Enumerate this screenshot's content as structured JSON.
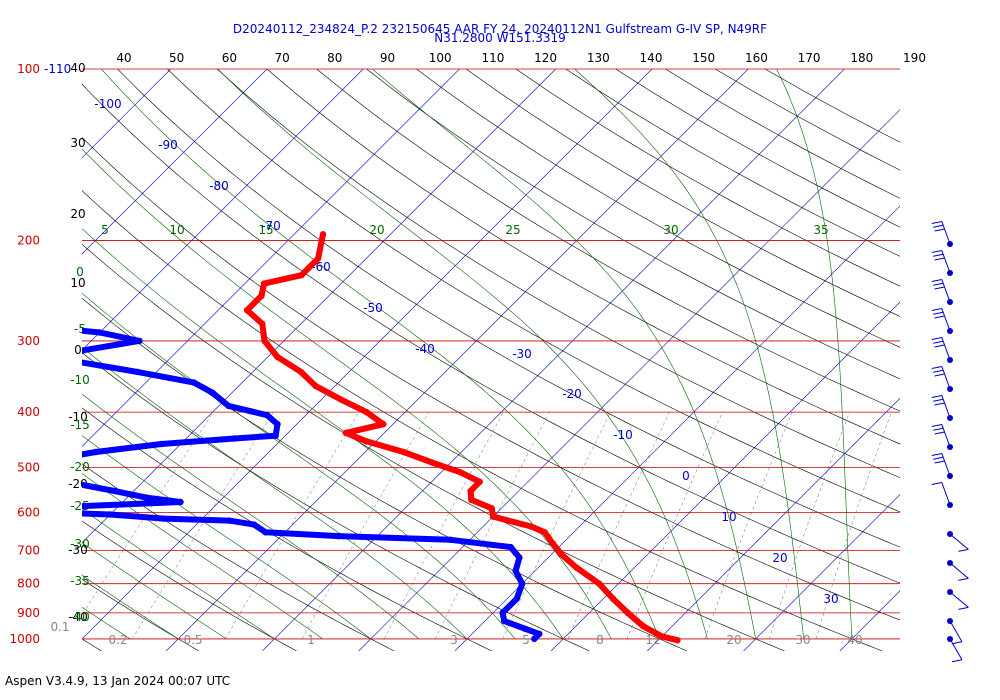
{
  "chart_data": {
    "type": "line",
    "title": "D20240112_234824_P.2 232150645 AAR FY 24, 20240112N1 Gulfstream G-IV SP, N49RF",
    "subtitle": "N31.2800 W151.3319",
    "footer": "Aspen V3.4.9, 13 Jan 2024  00:07 UTC",
    "colors": {
      "temperature": "#ff0000",
      "dewpoint": "#0000ff",
      "isobar": "#cc0000",
      "isotherm": "#0000cc",
      "dry_adiabat": "#000000",
      "moist_adiabat": "#006600",
      "mixing_ratio": "#666666"
    },
    "pressure_levels": [
      {
        "p": 100,
        "label": "100"
      },
      {
        "p": 200,
        "label": "200"
      },
      {
        "p": 300,
        "label": "300"
      },
      {
        "p": 400,
        "label": "400"
      },
      {
        "p": 500,
        "label": "500"
      },
      {
        "p": 600,
        "label": "600"
      },
      {
        "p": 700,
        "label": "700"
      },
      {
        "p": 800,
        "label": "800"
      },
      {
        "p": 900,
        "label": "900"
      },
      {
        "p": 1000,
        "label": "1000"
      }
    ],
    "isotherm_top_labels": [
      "-110"
    ],
    "theta_top_labels": [
      "40",
      "50",
      "60",
      "70",
      "80",
      "90",
      "100",
      "110",
      "120",
      "130",
      "140",
      "150",
      "160",
      "170",
      "180",
      "190"
    ],
    "isotherm_labels": [
      "-100",
      "-90",
      "-80",
      "-70",
      "-60",
      "-50",
      "-40",
      "-30",
      "-20",
      "-10",
      "0",
      "10",
      "20",
      "30"
    ],
    "left_theta_labels": [
      "40",
      "30",
      "20",
      "10",
      "0",
      "-10",
      "-20",
      "-30",
      "-40"
    ],
    "moist_left_labels": [
      "0",
      "-5",
      "-10",
      "-15",
      "-20",
      "-25",
      "-30",
      "-35",
      "-40"
    ],
    "moist_top_labels": [
      "5",
      "10",
      "15",
      "20",
      "25",
      "30",
      "35"
    ],
    "mixing_ratio_labels": [
      "0.2",
      "0.5",
      "1",
      "3",
      "5",
      "8",
      "12",
      "20",
      "30",
      "40"
    ],
    "left_corner_label": "0.1",
    "temperature_profile": [
      {
        "p": 195,
        "t": -57
      },
      {
        "p": 215,
        "t": -55
      },
      {
        "p": 230,
        "t": -55
      },
      {
        "p": 238,
        "t": -58
      },
      {
        "p": 250,
        "t": -57
      },
      {
        "p": 265,
        "t": -57
      },
      {
        "p": 280,
        "t": -54
      },
      {
        "p": 300,
        "t": -52
      },
      {
        "p": 320,
        "t": -49
      },
      {
        "p": 340,
        "t": -45
      },
      {
        "p": 360,
        "t": -42
      },
      {
        "p": 380,
        "t": -38
      },
      {
        "p": 400,
        "t": -34
      },
      {
        "p": 420,
        "t": -31
      },
      {
        "p": 435,
        "t": -34
      },
      {
        "p": 450,
        "t": -31
      },
      {
        "p": 470,
        "t": -26
      },
      {
        "p": 490,
        "t": -22
      },
      {
        "p": 510,
        "t": -18
      },
      {
        "p": 530,
        "t": -15
      },
      {
        "p": 550,
        "t": -15
      },
      {
        "p": 570,
        "t": -14
      },
      {
        "p": 590,
        "t": -11
      },
      {
        "p": 610,
        "t": -10
      },
      {
        "p": 635,
        "t": -5
      },
      {
        "p": 650,
        "t": -3
      },
      {
        "p": 680,
        "t": -1
      },
      {
        "p": 710,
        "t": 1
      },
      {
        "p": 750,
        "t": 4
      },
      {
        "p": 800,
        "t": 8
      },
      {
        "p": 850,
        "t": 11
      },
      {
        "p": 900,
        "t": 14
      },
      {
        "p": 950,
        "t": 17
      },
      {
        "p": 990,
        "t": 20
      },
      {
        "p": 1005,
        "t": 22
      }
    ],
    "dewpoint_profile": [
      {
        "p": 255,
        "t": -100
      },
      {
        "p": 265,
        "t": -98
      },
      {
        "p": 270,
        "t": -97
      },
      {
        "p": 275,
        "t": -90
      },
      {
        "p": 278,
        "t": -84
      },
      {
        "p": 282,
        "t": -78
      },
      {
        "p": 290,
        "t": -70
      },
      {
        "p": 300,
        "t": -65
      },
      {
        "p": 312,
        "t": -70
      },
      {
        "p": 325,
        "t": -70
      },
      {
        "p": 340,
        "t": -62
      },
      {
        "p": 355,
        "t": -55
      },
      {
        "p": 370,
        "t": -52
      },
      {
        "p": 390,
        "t": -49
      },
      {
        "p": 405,
        "t": -44
      },
      {
        "p": 420,
        "t": -42
      },
      {
        "p": 440,
        "t": -41
      },
      {
        "p": 445,
        "t": -45
      },
      {
        "p": 455,
        "t": -52
      },
      {
        "p": 470,
        "t": -58
      },
      {
        "p": 490,
        "t": -63
      },
      {
        "p": 510,
        "t": -64
      },
      {
        "p": 530,
        "t": -58
      },
      {
        "p": 550,
        "t": -52
      },
      {
        "p": 565,
        "t": -48
      },
      {
        "p": 575,
        "t": -44
      },
      {
        "p": 585,
        "t": -54
      },
      {
        "p": 600,
        "t": -56
      },
      {
        "p": 605,
        "t": -50
      },
      {
        "p": 615,
        "t": -44
      },
      {
        "p": 620,
        "t": -37
      },
      {
        "p": 630,
        "t": -34
      },
      {
        "p": 650,
        "t": -32
      },
      {
        "p": 660,
        "t": -24
      },
      {
        "p": 670,
        "t": -12
      },
      {
        "p": 690,
        "t": -5
      },
      {
        "p": 720,
        "t": -3
      },
      {
        "p": 760,
        "t": -2
      },
      {
        "p": 800,
        "t": 0
      },
      {
        "p": 850,
        "t": 1
      },
      {
        "p": 900,
        "t": 1
      },
      {
        "p": 930,
        "t": 2
      },
      {
        "p": 960,
        "t": 5
      },
      {
        "p": 980,
        "t": 7
      },
      {
        "p": 1000,
        "t": 7
      }
    ],
    "wind_levels": [
      200,
      250,
      300,
      350,
      400,
      450,
      500,
      550,
      600,
      650,
      700,
      750,
      800,
      850,
      900,
      950,
      1000
    ],
    "x_range_t_at_1000": [
      -40,
      45
    ],
    "y_range_p": [
      100,
      1050
    ]
  }
}
